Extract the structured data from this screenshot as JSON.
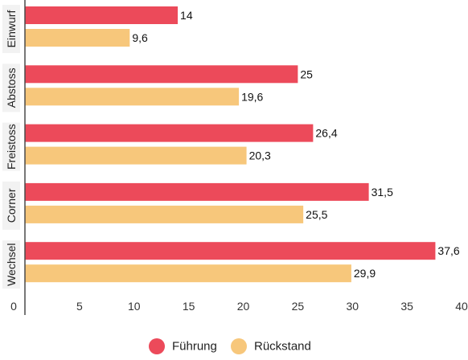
{
  "chart_data": {
    "type": "bar",
    "orientation": "horizontal",
    "categories": [
      "Einwurf",
      "Abstoss",
      "Freistoss",
      "Corner",
      "Wechsel"
    ],
    "series": [
      {
        "name": "Führung",
        "color": "#ec4a5a",
        "values": [
          14,
          25,
          26.4,
          31.5,
          37.6
        ],
        "labels": [
          "14",
          "25",
          "26,4",
          "31,5",
          "37,6"
        ]
      },
      {
        "name": "Rückstand",
        "color": "#f7c77b",
        "values": [
          9.6,
          19.6,
          20.3,
          25.5,
          29.9
        ],
        "labels": [
          "9,6",
          "19,6",
          "20,3",
          "25,5",
          "29,9"
        ]
      }
    ],
    "xlim": [
      0,
      40
    ],
    "xticks": [
      0,
      5,
      10,
      15,
      20,
      25,
      30,
      35,
      40
    ],
    "grid": false,
    "legend_position": "bottom"
  }
}
